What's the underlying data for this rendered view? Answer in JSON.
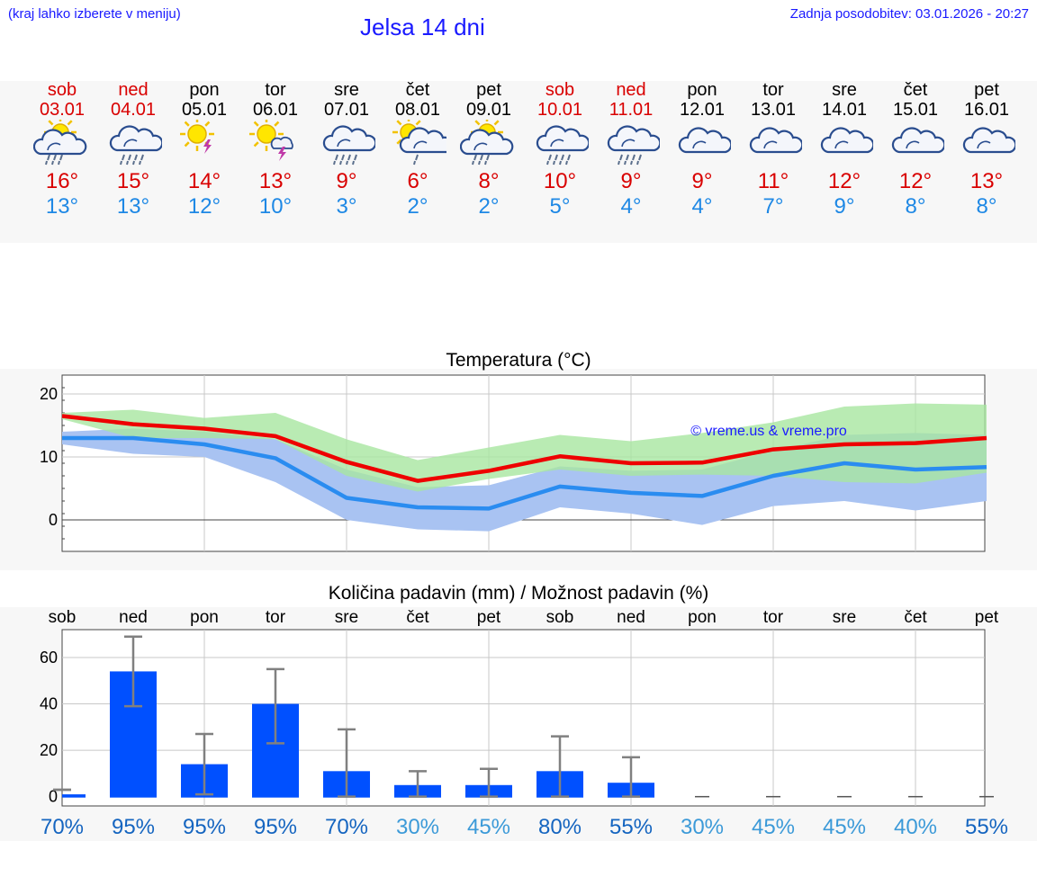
{
  "header": {
    "hint": "(kraj lahko izberete v meniju)",
    "title": "Jelsa 14 dni",
    "updated": "Zadnja posodobitev: 03.01.2026 - 20:27"
  },
  "days": [
    {
      "name": "sob",
      "date": "03.01",
      "weekend": true,
      "icon": "sun-cloud-rain-icon",
      "max": "16°",
      "min": "13°"
    },
    {
      "name": "ned",
      "date": "04.01",
      "weekend": true,
      "icon": "cloud-rain-icon",
      "max": "15°",
      "min": "13°"
    },
    {
      "name": "pon",
      "date": "05.01",
      "weekend": false,
      "icon": "sun-thunder-icon",
      "max": "14°",
      "min": "12°"
    },
    {
      "name": "tor",
      "date": "06.01",
      "weekend": false,
      "icon": "sun-cloud-thunder-icon",
      "max": "13°",
      "min": "10°"
    },
    {
      "name": "sre",
      "date": "07.01",
      "weekend": false,
      "icon": "cloud-rain-icon",
      "max": "9°",
      "min": "3°"
    },
    {
      "name": "čet",
      "date": "08.01",
      "weekend": false,
      "icon": "sun-cloud-light-rain-icon",
      "max": "6°",
      "min": "2°"
    },
    {
      "name": "pet",
      "date": "09.01",
      "weekend": false,
      "icon": "sun-cloud-rain-icon",
      "max": "8°",
      "min": "2°"
    },
    {
      "name": "sob",
      "date": "10.01",
      "weekend": true,
      "icon": "cloud-rain-icon",
      "max": "10°",
      "min": "5°"
    },
    {
      "name": "ned",
      "date": "11.01",
      "weekend": true,
      "icon": "cloud-rain-icon",
      "max": "9°",
      "min": "4°"
    },
    {
      "name": "pon",
      "date": "12.01",
      "weekend": false,
      "icon": "cloud-icon",
      "max": "9°",
      "min": "4°"
    },
    {
      "name": "tor",
      "date": "13.01",
      "weekend": false,
      "icon": "cloud-icon",
      "max": "11°",
      "min": "7°"
    },
    {
      "name": "sre",
      "date": "14.01",
      "weekend": false,
      "icon": "cloud-icon",
      "max": "12°",
      "min": "9°"
    },
    {
      "name": "čet",
      "date": "15.01",
      "weekend": false,
      "icon": "cloud-icon",
      "max": "12°",
      "min": "8°"
    },
    {
      "name": "pet",
      "date": "16.01",
      "weekend": false,
      "icon": "cloud-icon",
      "max": "13°",
      "min": "8°"
    }
  ],
  "colors": {
    "title_blue": "#1a1aff",
    "weekend_red": "#d90000",
    "max_line": "#ee0000",
    "min_line": "#2a8cf0",
    "max_band": "#a8e6a0",
    "min_band": "#a9c3f2",
    "overlap_band": "#7cc6a8",
    "bar": "#0050ff",
    "whisker": "#808080",
    "prob_dark": "#1565c0",
    "prob_light": "#3c9ad8"
  },
  "chart_data": [
    {
      "type": "line",
      "title": "Temperatura (°C)",
      "watermark": "© vreme.us & vreme.pro",
      "ylim": [
        -5,
        23
      ],
      "yticks": [
        0,
        10,
        20
      ],
      "series": [
        {
          "name": "max",
          "values": [
            16.5,
            15.2,
            14.5,
            13.3,
            9.2,
            6.2,
            7.8,
            10.1,
            9.0,
            9.1,
            11.2,
            12.0,
            12.2,
            13.0
          ],
          "band_low": [
            16.0,
            13.0,
            13.0,
            12.8,
            7.0,
            4.5,
            6.5,
            8.0,
            7.0,
            7.2,
            7.0,
            6.0,
            5.8,
            7.5
          ],
          "band_high": [
            17.0,
            17.5,
            16.2,
            17.0,
            12.8,
            9.5,
            11.5,
            13.5,
            12.5,
            13.8,
            15.5,
            18.0,
            18.5,
            18.3
          ]
        },
        {
          "name": "min",
          "values": [
            13.0,
            13.0,
            12.0,
            9.8,
            3.5,
            2.0,
            1.8,
            5.3,
            4.3,
            3.8,
            7.0,
            9.0,
            8.0,
            8.4
          ],
          "band_low": [
            12.0,
            10.5,
            10.0,
            6.0,
            0.0,
            -1.5,
            -1.8,
            2.0,
            1.0,
            -0.8,
            2.2,
            3.0,
            1.5,
            3.0
          ],
          "band_high": [
            14.0,
            14.5,
            14.0,
            12.8,
            8.0,
            5.2,
            5.5,
            8.5,
            7.8,
            8.0,
            11.0,
            13.5,
            13.8,
            13.5
          ]
        }
      ]
    },
    {
      "type": "bar",
      "title": "Količina padavin (mm) / Možnost padavin (%)",
      "categories": [
        "sob",
        "ned",
        "pon",
        "tor",
        "sre",
        "čet",
        "pet",
        "sob",
        "ned",
        "pon",
        "tor",
        "sre",
        "čet",
        "pet"
      ],
      "ylim": [
        -4,
        72
      ],
      "yticks": [
        0,
        20,
        40,
        60
      ],
      "values": [
        1,
        54,
        14,
        40,
        11,
        5,
        5,
        11,
        6,
        0,
        0,
        0,
        0,
        0
      ],
      "err_low": [
        3,
        39,
        1,
        23,
        0,
        0,
        0,
        0,
        0,
        0,
        0,
        0,
        0,
        0
      ],
      "err_high": [
        3,
        69,
        27,
        55,
        29,
        11,
        12,
        26,
        17,
        0,
        0,
        0,
        0,
        0
      ],
      "probabilities": [
        "70%",
        "95%",
        "95%",
        "95%",
        "70%",
        "30%",
        "45%",
        "80%",
        "55%",
        "30%",
        "45%",
        "45%",
        "40%",
        "55%"
      ],
      "probability_values": [
        70,
        95,
        95,
        95,
        70,
        30,
        45,
        80,
        55,
        30,
        45,
        45,
        40,
        55
      ]
    }
  ]
}
